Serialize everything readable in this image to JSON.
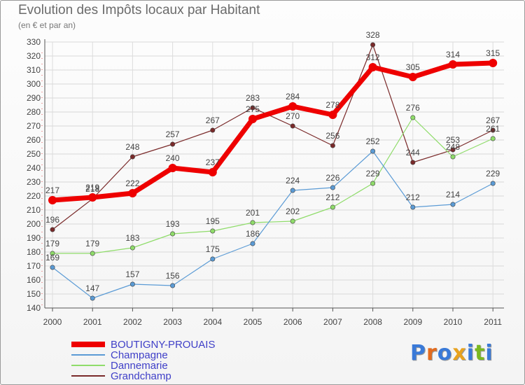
{
  "header": {
    "title": "Evolution des Impôts locaux par Habitant",
    "subtitle": "(en € et par an)"
  },
  "logo": {
    "text": "Proxiti",
    "colors": [
      "#3a7ad8",
      "#e36b1e",
      "#3a7ad8",
      "#e8a21e",
      "#3a7ad8",
      "#7ab821",
      "#3a7ad8"
    ]
  },
  "chart_data": {
    "type": "line",
    "title": "Evolution des Impôts locaux par Habitant",
    "subtitle": "(en € et par an)",
    "xlabel": "",
    "ylabel": "",
    "ylim": [
      140,
      330
    ],
    "ytick_step": 10,
    "x": [
      "2000",
      "2001",
      "2002",
      "2003",
      "2004",
      "2005",
      "2006",
      "2007",
      "2008",
      "2009",
      "2010",
      "2011"
    ],
    "legend_position": "bottom-left",
    "series": [
      {
        "name": "Grandchamp",
        "color": "#7a2a2a",
        "width": 1.2,
        "values": [
          196,
          218,
          248,
          257,
          267,
          283,
          270,
          256,
          328,
          244,
          253,
          267
        ],
        "labels": [
          "196",
          "218",
          "248",
          "257",
          "267",
          "283",
          "270",
          "256",
          "328",
          "244",
          "253",
          "267"
        ]
      },
      {
        "name": "Dannemarie",
        "color": "#8fdc6a",
        "width": 1.2,
        "values": [
          179,
          179,
          183,
          193,
          195,
          201,
          202,
          212,
          229,
          276,
          248,
          261
        ],
        "labels": [
          "179",
          "179",
          "183",
          "193",
          "195",
          "201",
          "202",
          "212",
          "229",
          "276",
          "248",
          "261"
        ]
      },
      {
        "name": "Champagne",
        "color": "#5b9bd5",
        "width": 1.2,
        "values": [
          169,
          147,
          157,
          156,
          175,
          186,
          224,
          226,
          252,
          212,
          214,
          229
        ],
        "labels": [
          "169",
          "147",
          "157",
          "156",
          "175",
          "186",
          "224",
          "226",
          "252",
          "212",
          "214",
          "229"
        ]
      },
      {
        "name": "BOUTIGNY-PROUAIS",
        "color": "#ee0000",
        "width": 7,
        "values": [
          217,
          219,
          222,
          240,
          237,
          275,
          284,
          278,
          312,
          305,
          314,
          315
        ],
        "labels": [
          "217",
          "219",
          "222",
          "240",
          "237",
          "275",
          "284",
          "278",
          "312",
          "305",
          "314",
          "315"
        ]
      }
    ],
    "legend_order": [
      "BOUTIGNY-PROUAIS",
      "Champagne",
      "Dannemarie",
      "Grandchamp"
    ]
  }
}
